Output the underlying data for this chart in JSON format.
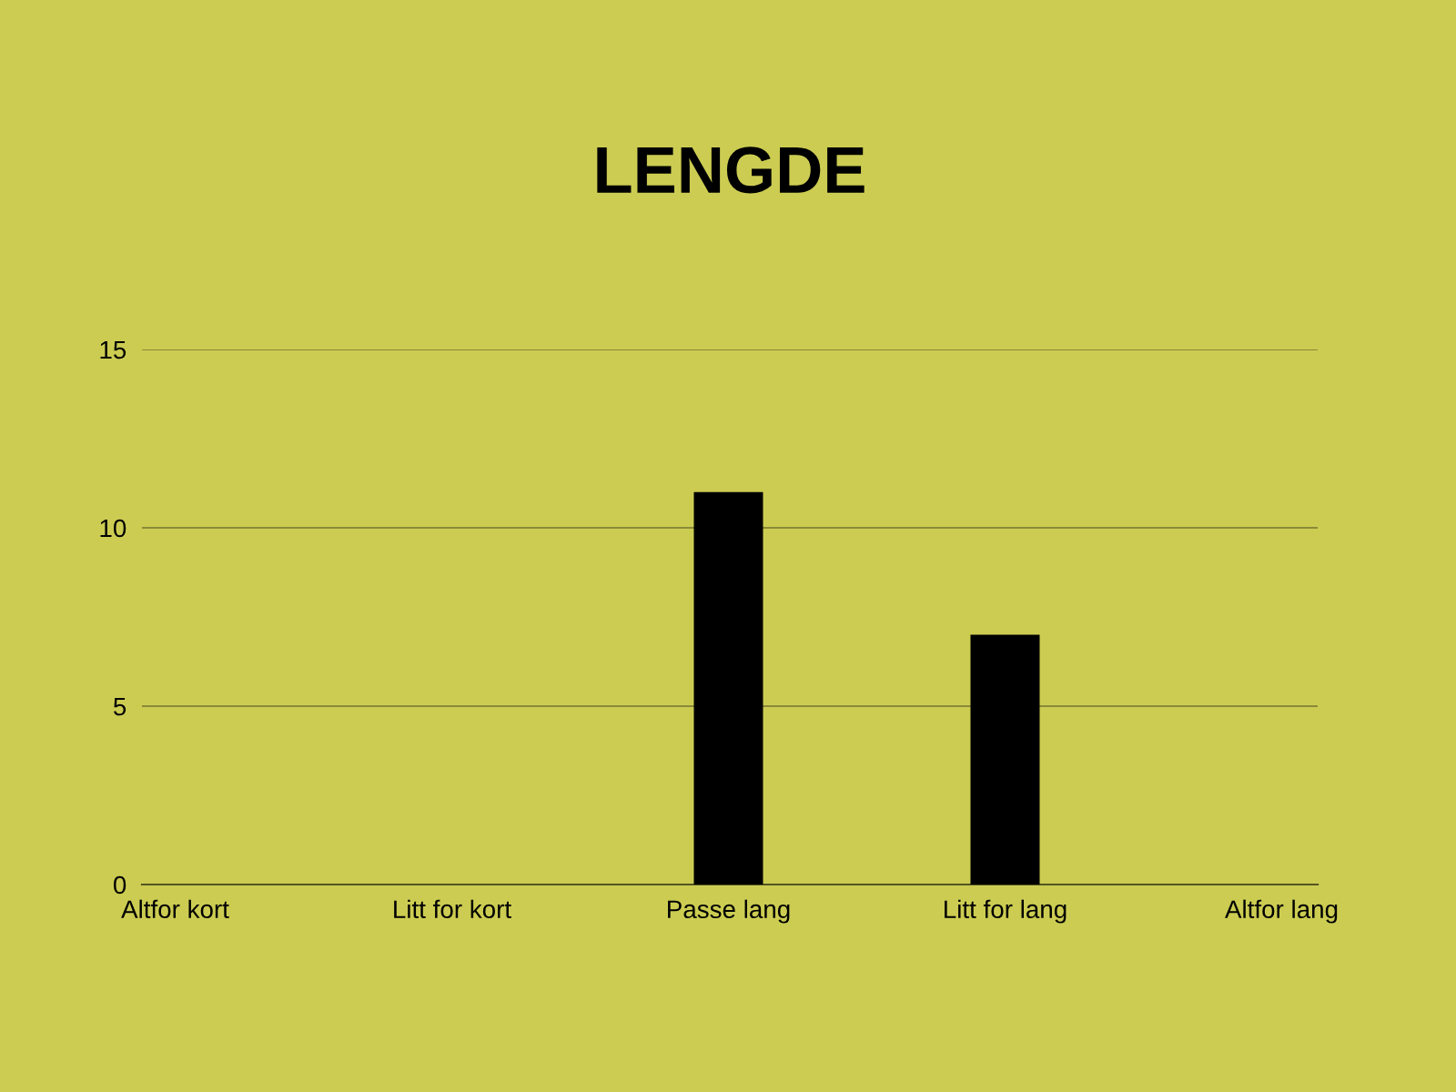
{
  "chart_data": {
    "type": "bar",
    "title": "LENGDE",
    "categories": [
      "Altfor kort",
      "Litt for kort",
      "Passe lang",
      "Litt for lang",
      "Altfor lang"
    ],
    "values": [
      0,
      0,
      11,
      7,
      0
    ],
    "color": "#000000",
    "ylim": [
      0,
      15
    ],
    "yticks": [
      0,
      5,
      10,
      15
    ],
    "grid": "y"
  }
}
